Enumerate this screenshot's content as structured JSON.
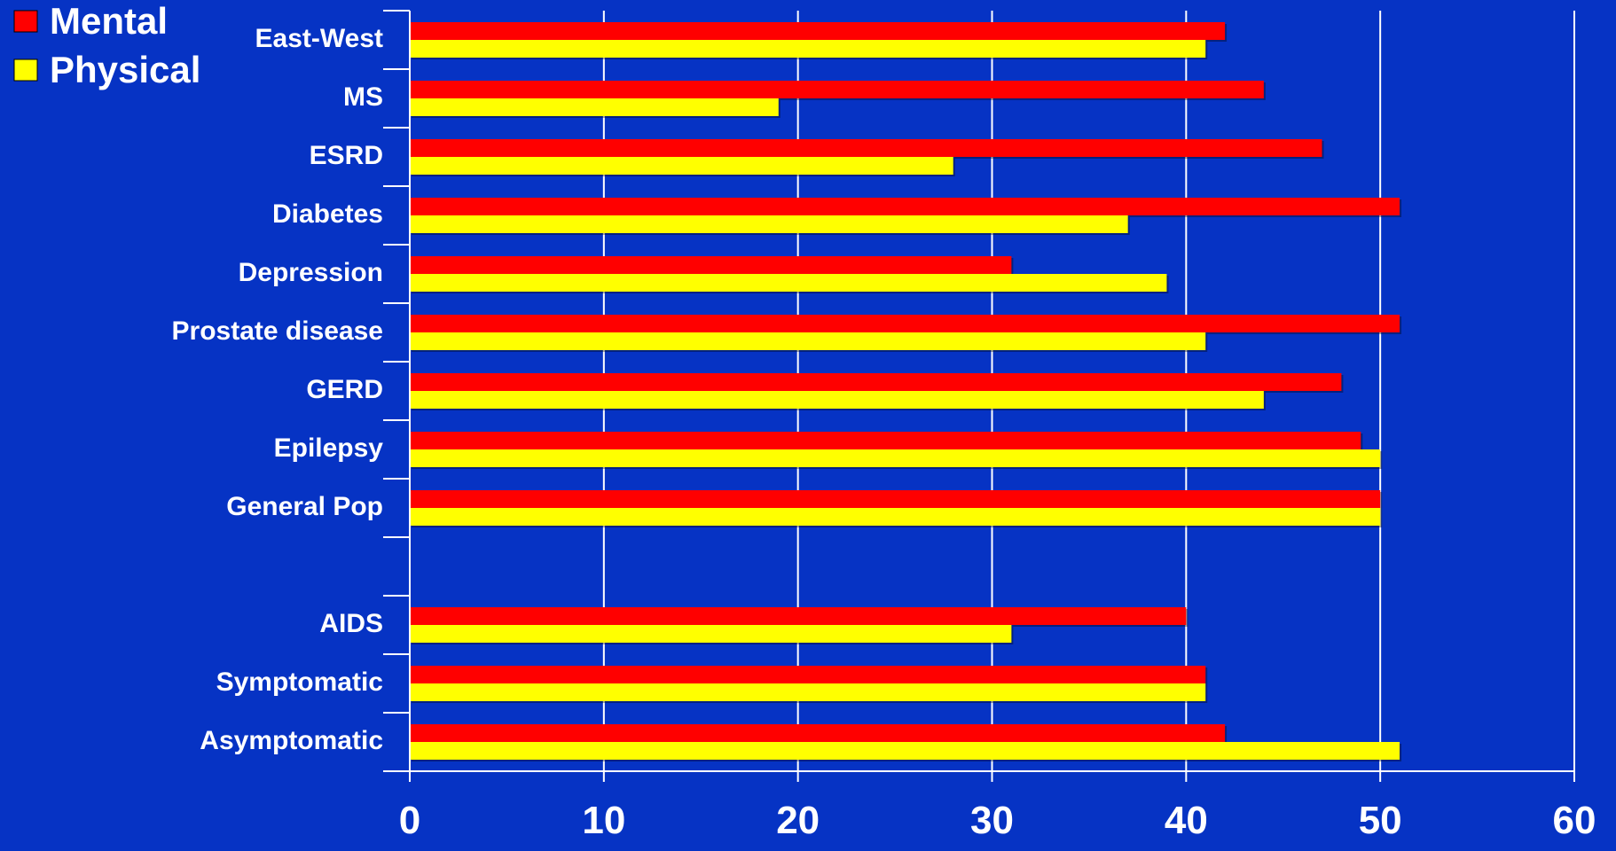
{
  "chart_data": {
    "type": "bar",
    "orientation": "horizontal",
    "categories": [
      "East-West",
      "MS",
      "ESRD",
      "Diabetes",
      "Depression",
      "Prostate disease",
      "GERD",
      "Epilepsy",
      "General Pop",
      "",
      "AIDS",
      "Symptomatic",
      "Asymptomatic"
    ],
    "series": [
      {
        "name": "Mental",
        "color": "#ff0000",
        "values": [
          42,
          44,
          47,
          51,
          31,
          51,
          48,
          49,
          50,
          null,
          40,
          41,
          42
        ]
      },
      {
        "name": "Physical",
        "color": "#ffff00",
        "values": [
          41,
          19,
          28,
          37,
          39,
          41,
          44,
          50,
          50,
          null,
          31,
          41,
          51
        ]
      }
    ],
    "xlim": [
      0,
      60
    ],
    "xticks": [
      0,
      10,
      20,
      30,
      40,
      50,
      60
    ],
    "grid": true,
    "legend_position": "top-left",
    "background": "#0633c4"
  }
}
